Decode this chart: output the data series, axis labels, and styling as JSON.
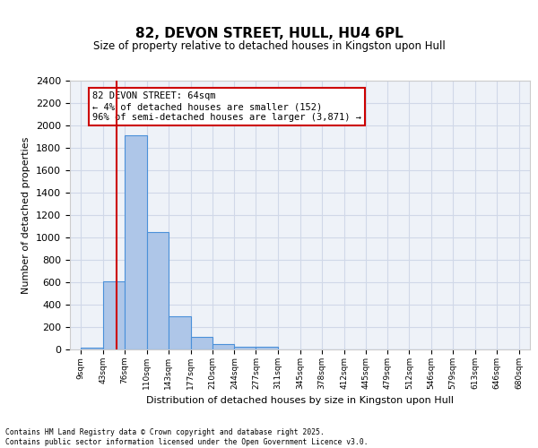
{
  "title1": "82, DEVON STREET, HULL, HU4 6PL",
  "title2": "Size of property relative to detached houses in Kingston upon Hull",
  "xlabel": "Distribution of detached houses by size in Kingston upon Hull",
  "ylabel": "Number of detached properties",
  "bin_labels": [
    "9sqm",
    "43sqm",
    "76sqm",
    "110sqm",
    "143sqm",
    "177sqm",
    "210sqm",
    "244sqm",
    "277sqm",
    "311sqm",
    "345sqm",
    "378sqm",
    "412sqm",
    "445sqm",
    "479sqm",
    "512sqm",
    "546sqm",
    "579sqm",
    "613sqm",
    "646sqm",
    "680sqm"
  ],
  "bin_edges": [
    9,
    43,
    76,
    110,
    143,
    177,
    210,
    244,
    277,
    311,
    345,
    378,
    412,
    445,
    479,
    512,
    546,
    579,
    613,
    646,
    680
  ],
  "bar_heights": [
    20,
    608,
    1910,
    1045,
    295,
    110,
    47,
    22,
    22,
    0,
    0,
    0,
    0,
    0,
    0,
    0,
    0,
    0,
    0,
    0
  ],
  "bar_color": "#aec6e8",
  "bar_edge_color": "#4a90d9",
  "grid_color": "#d0d8e8",
  "bg_color": "#eef2f8",
  "vline_x": 64,
  "vline_color": "#cc0000",
  "annotation_text": "82 DEVON STREET: 64sqm\n← 4% of detached houses are smaller (152)\n96% of semi-detached houses are larger (3,871) →",
  "annotation_box_color": "#cc0000",
  "ylim": [
    0,
    2400
  ],
  "yticks": [
    0,
    200,
    400,
    600,
    800,
    1000,
    1200,
    1400,
    1600,
    1800,
    2000,
    2200,
    2400
  ],
  "footer1": "Contains HM Land Registry data © Crown copyright and database right 2025.",
  "footer2": "Contains public sector information licensed under the Open Government Licence v3.0."
}
